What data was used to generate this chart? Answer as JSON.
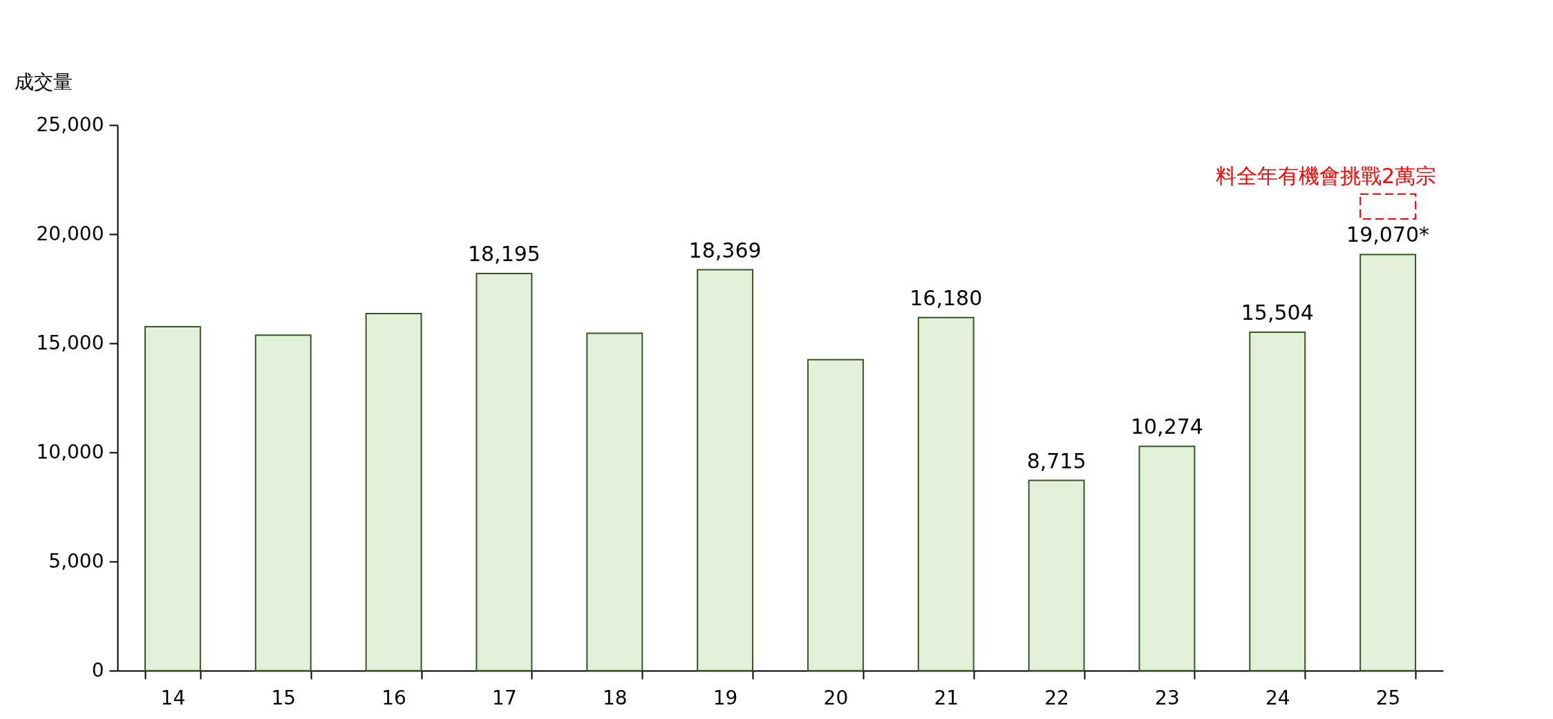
{
  "chart_data": {
    "type": "bar",
    "ylabel": "成交量",
    "categories": [
      "14",
      "15",
      "16",
      "17",
      "18",
      "19",
      "20",
      "21",
      "22",
      "23",
      "24",
      "25"
    ],
    "values": [
      15760,
      15370,
      16360,
      18195,
      15460,
      18369,
      14250,
      16180,
      8715,
      10274,
      15504,
      19070
    ],
    "value_labels": [
      null,
      null,
      null,
      "18,195",
      null,
      "18,369",
      null,
      "16,180",
      "8,715",
      "10,274",
      "15,504",
      "19,070*"
    ],
    "color": "#e2efd9",
    "ylim": [
      0,
      25000
    ],
    "yticks": [
      0,
      {
        "value": 5000,
        "label": "5,000"
      },
      {
        "value": 10000,
        "label": "10,000"
      },
      {
        "value": 15000,
        "label": "15,000"
      },
      {
        "value": 20000,
        "label": "20,000"
      },
      {
        "value": 25000,
        "label": "25,000"
      }
    ],
    "annotations": [
      "料全年有機會挑戰2萬宗"
    ]
  }
}
